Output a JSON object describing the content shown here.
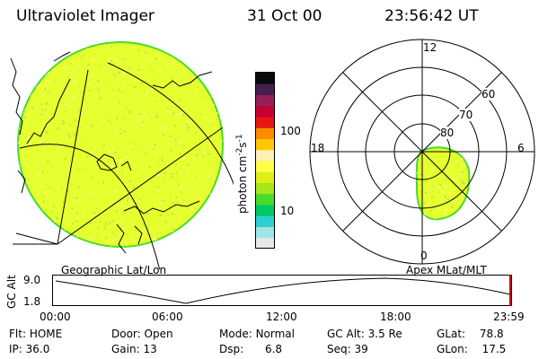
{
  "header": {
    "instrument": "Ultraviolet Imager",
    "date": "31 Oct 00",
    "time": "23:56:42 UT"
  },
  "colorbar": {
    "unit_label": "photon cm",
    "unit_exp1": "-2",
    "unit_s": "s",
    "unit_exp2": "-1",
    "ticks": [
      "100",
      "10"
    ],
    "colors": [
      "#e8e8e8",
      "#9fe6e6",
      "#2ecfcf",
      "#00c864",
      "#46dc2a",
      "#a5e61e",
      "#dcf014",
      "#ffff46",
      "#fff0b4",
      "#ffc800",
      "#ff8c00",
      "#e61414",
      "#c80032",
      "#961e5a",
      "#461e50",
      "#0a0a0a"
    ]
  },
  "left_panel": {
    "caption": "Geographic Lat/Lon",
    "fill_color": "#e6ff2e",
    "edge_color": "#46dc2a"
  },
  "right_panel": {
    "caption": "Apex MLat/MLT",
    "mlt_labels": {
      "top": "12",
      "left": "18",
      "right": "6",
      "bottom": "0"
    },
    "lat_labels": [
      "60",
      "70",
      "80"
    ]
  },
  "alt_plot": {
    "y_title": "GC Alt",
    "y_ticks": [
      "9.0",
      "1.8"
    ],
    "x_ticks": [
      "00:00",
      "06:00",
      "12:00",
      "18:00",
      "23:59"
    ],
    "marker_color": "#c80000"
  },
  "info": {
    "row1": [
      {
        "label": "Flt:",
        "value": "HOME"
      },
      {
        "label": "Door:",
        "value": "Open"
      },
      {
        "label": "Mode:",
        "value": "Normal"
      },
      {
        "label": "GC Alt:",
        "value": "3.5 Re"
      },
      {
        "label": "GLat:",
        "value": "78.8"
      }
    ],
    "row2": [
      {
        "label": "IP:",
        "value": "36.0"
      },
      {
        "label": "Gain:",
        "value": "13"
      },
      {
        "label": "Dsp:",
        "value": "6.8"
      },
      {
        "label": "Seq:",
        "value": "39"
      },
      {
        "label": "GLon:",
        "value": "17.5"
      }
    ]
  }
}
